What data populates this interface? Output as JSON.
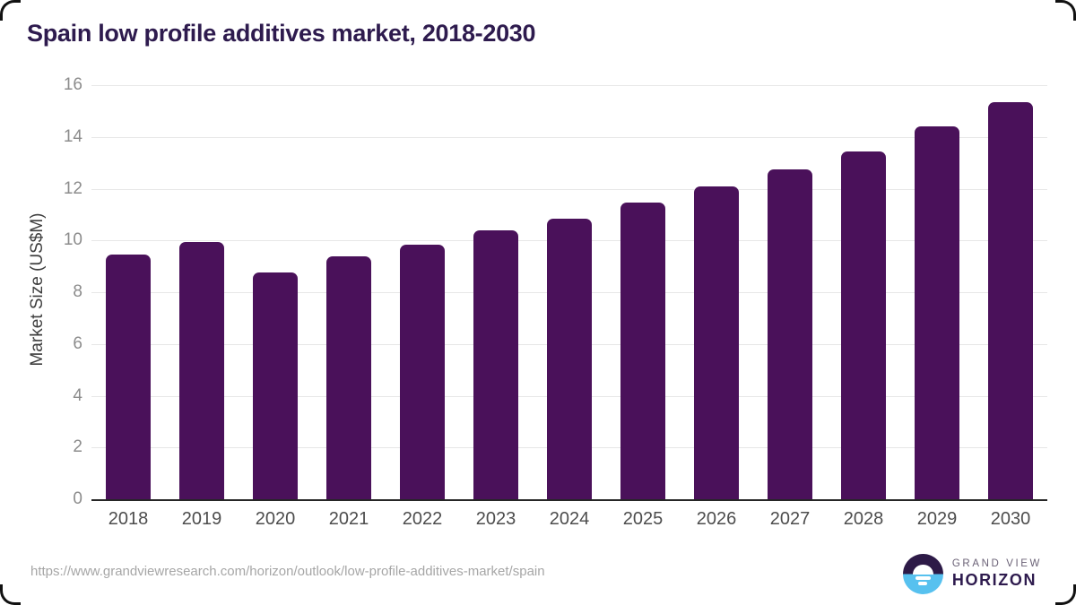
{
  "title": "Spain low profile additives market, 2018-2030",
  "chart_data": {
    "type": "bar",
    "title": "Spain low profile additives market, 2018-2030",
    "categories": [
      "2018",
      "2019",
      "2020",
      "2021",
      "2022",
      "2023",
      "2024",
      "2025",
      "2026",
      "2027",
      "2028",
      "2029",
      "2030"
    ],
    "values": [
      9.45,
      9.95,
      8.75,
      9.4,
      9.85,
      10.4,
      10.85,
      11.45,
      12.1,
      12.75,
      13.45,
      14.4,
      15.35
    ],
    "xlabel": "",
    "ylabel": "Market Size (US$M)",
    "ylim": [
      0,
      16
    ],
    "yticks": [
      0,
      2,
      4,
      6,
      8,
      10,
      12,
      14,
      16
    ],
    "grid": true,
    "legend": false,
    "bar_color": "#4a115a"
  },
  "footer": {
    "source_url": "https://www.grandviewresearch.com/horizon/outlook/low-profile-additives-market/spain",
    "logo": {
      "line1": "GRAND VIEW",
      "line2": "HORIZON"
    }
  },
  "colors": {
    "title": "#2e1b4e",
    "bar": "#4a115a",
    "gridline": "#e7e7e7",
    "axis_line": "#262626",
    "ytick_label": "#8c8c8c",
    "xtick_label": "#4d4d4d",
    "url_text": "#a6a6a6",
    "logo_dark_purple": "#2d1a47",
    "logo_blue": "#57c1ef"
  }
}
